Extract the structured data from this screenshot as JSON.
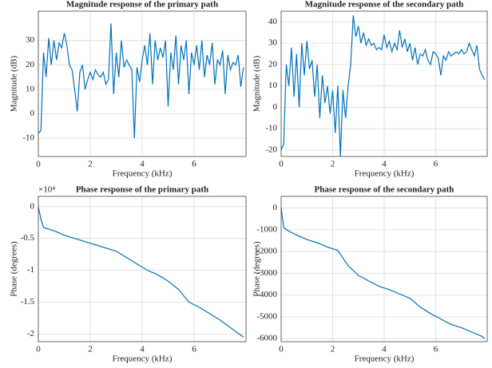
{
  "chart_data": [
    {
      "type": "line",
      "title": "Magnitude response of the primary path",
      "x_label": "Frequency (kHz)",
      "y_label": "Magnitude (dB)",
      "xlim": [
        0,
        8
      ],
      "xticks": [
        0,
        2,
        4,
        6
      ],
      "ylim": [
        -17.5,
        42
      ],
      "yticks": [
        -10,
        0,
        10,
        20,
        30
      ],
      "grid": true,
      "series": [
        {
          "color": "#0072bd",
          "x": [
            0,
            0.1,
            0.2,
            0.3,
            0.4,
            0.5,
            0.6,
            0.7,
            0.8,
            0.9,
            1.0,
            1.1,
            1.2,
            1.3,
            1.4,
            1.5,
            1.6,
            1.7,
            1.8,
            1.9,
            2.0,
            2.1,
            2.2,
            2.3,
            2.4,
            2.5,
            2.6,
            2.7,
            2.8,
            2.9,
            3.0,
            3.1,
            3.2,
            3.3,
            3.4,
            3.5,
            3.6,
            3.7,
            3.8,
            3.9,
            4.0,
            4.1,
            4.2,
            4.3,
            4.4,
            4.5,
            4.6,
            4.7,
            4.8,
            4.9,
            5.0,
            5.1,
            5.2,
            5.3,
            5.4,
            5.5,
            5.6,
            5.7,
            5.8,
            5.9,
            6.0,
            6.1,
            6.2,
            6.3,
            6.4,
            6.5,
            6.6,
            6.7,
            6.8,
            6.9,
            7.0,
            7.1,
            7.2,
            7.3,
            7.4,
            7.5,
            7.6,
            7.7,
            7.8,
            7.9
          ],
          "values": [
            -8,
            -7,
            25,
            15,
            31,
            20,
            30,
            22,
            29,
            27,
            33,
            28,
            20,
            18,
            10,
            1,
            17,
            20,
            10,
            14,
            17,
            14,
            18,
            16,
            15,
            17,
            12,
            14,
            37,
            8,
            25,
            15,
            30,
            19,
            22,
            20,
            18,
            -10,
            19,
            13,
            22,
            28,
            20,
            33,
            12,
            30,
            22,
            27,
            23,
            30,
            3,
            25,
            18,
            32,
            12,
            28,
            22,
            30,
            8,
            25,
            20,
            28,
            18,
            30,
            15,
            24,
            20,
            29,
            12,
            22,
            20,
            26,
            8,
            24,
            18,
            21,
            20,
            24,
            11,
            19
          ]
        }
      ]
    },
    {
      "type": "line",
      "title": "Magnitude response of the secondary path",
      "x_label": "Frequency (kHz)",
      "y_label": "Magnitude (dB)",
      "xlim": [
        0,
        8
      ],
      "xticks": [
        0,
        2,
        4,
        6
      ],
      "ylim": [
        -23,
        45
      ],
      "yticks": [
        -20,
        -10,
        0,
        10,
        20,
        30,
        40
      ],
      "grid": true,
      "series": [
        {
          "color": "#0072bd",
          "x": [
            0,
            0.1,
            0.2,
            0.3,
            0.4,
            0.5,
            0.6,
            0.7,
            0.8,
            0.9,
            1.0,
            1.1,
            1.2,
            1.3,
            1.4,
            1.5,
            1.6,
            1.7,
            1.8,
            1.9,
            2.0,
            2.1,
            2.2,
            2.3,
            2.4,
            2.5,
            2.6,
            2.7,
            2.8,
            2.9,
            3.0,
            3.1,
            3.2,
            3.3,
            3.4,
            3.5,
            3.6,
            3.7,
            3.8,
            3.9,
            4.0,
            4.1,
            4.2,
            4.3,
            4.4,
            4.5,
            4.6,
            4.7,
            4.8,
            4.9,
            5.0,
            5.1,
            5.2,
            5.3,
            5.4,
            5.5,
            5.6,
            5.7,
            5.8,
            5.9,
            6.0,
            6.1,
            6.2,
            6.3,
            6.4,
            6.5,
            6.6,
            6.7,
            6.8,
            6.9,
            7.0,
            7.1,
            7.2,
            7.3,
            7.4,
            7.5,
            7.6,
            7.7,
            7.8,
            7.9
          ],
          "values": [
            -20,
            -17,
            20,
            10,
            28,
            5,
            25,
            0,
            30,
            15,
            31,
            18,
            22,
            5,
            20,
            -5,
            15,
            2,
            10,
            -3,
            8,
            -12,
            10,
            -23,
            8,
            -5,
            10,
            20,
            43,
            33,
            38,
            30,
            35,
            29,
            32,
            29,
            30,
            27,
            28,
            27,
            34,
            28,
            31,
            26,
            30,
            27,
            36,
            28,
            32,
            26,
            30,
            22,
            28,
            20,
            25,
            24,
            27,
            22,
            20,
            26,
            25,
            23,
            15,
            24,
            22,
            26,
            24,
            25,
            26,
            25,
            27,
            25,
            26,
            30,
            27,
            24,
            29,
            18,
            15,
            13
          ]
        }
      ]
    },
    {
      "type": "line",
      "title": "Phase response of the primary path",
      "x_label": "Frequency (kHz)",
      "y_label": "Phase (degrees)",
      "y_multiplier": "×10⁴",
      "xlim": [
        0,
        8
      ],
      "xticks": [
        0,
        2,
        4,
        6
      ],
      "ylim": [
        -2.12,
        0.16
      ],
      "yticks": [
        -2,
        -1.5,
        -1,
        -0.5,
        0
      ],
      "grid": true,
      "series": [
        {
          "color": "#0072bd",
          "x": [
            0,
            0.1,
            0.2,
            0.6,
            1.0,
            1.4,
            1.8,
            2.2,
            2.6,
            3.0,
            3.4,
            3.8,
            4.2,
            4.6,
            5.0,
            5.4,
            5.8,
            6.2,
            6.6,
            7.0,
            7.4,
            7.8,
            7.9
          ],
          "values": [
            0,
            -0.2,
            -0.33,
            -0.38,
            -0.45,
            -0.5,
            -0.55,
            -0.6,
            -0.65,
            -0.7,
            -0.8,
            -0.9,
            -1.0,
            -1.07,
            -1.17,
            -1.3,
            -1.5,
            -1.58,
            -1.68,
            -1.78,
            -1.9,
            -2.02,
            -2.05
          ]
        }
      ]
    },
    {
      "type": "line",
      "title": "Phase response of the secondary path",
      "x_label": "Frequency (kHz)",
      "y_label": "Phase (degrees)",
      "xlim": [
        0,
        8
      ],
      "xticks": [
        0,
        2,
        4,
        6
      ],
      "ylim": [
        -6140,
        530
      ],
      "yticks": [
        -6000,
        -5000,
        -4000,
        -3000,
        -2000,
        -1000,
        0
      ],
      "grid": true,
      "series": [
        {
          "color": "#0072bd",
          "x": [
            0,
            0.1,
            0.2,
            0.6,
            1.0,
            1.4,
            1.8,
            2.2,
            2.4,
            2.6,
            3.0,
            3.4,
            3.8,
            4.2,
            4.6,
            5.0,
            5.4,
            5.8,
            6.2,
            6.6,
            7.0,
            7.4,
            7.8,
            7.9
          ],
          "values": [
            0,
            -900,
            -1000,
            -1250,
            -1450,
            -1600,
            -1800,
            -1950,
            -2300,
            -2650,
            -3100,
            -3350,
            -3600,
            -3750,
            -3950,
            -4150,
            -4550,
            -4850,
            -5100,
            -5350,
            -5500,
            -5700,
            -5900,
            -6000
          ]
        }
      ]
    }
  ]
}
